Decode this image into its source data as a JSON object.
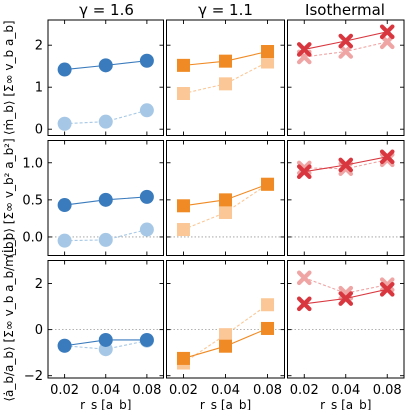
{
  "chart_data": {
    "type": "scatter",
    "column_titles": [
      "γ = 1.6",
      "γ = 1.1",
      "Isothermal"
    ],
    "row_ylabels": [
      "⟨ṁ_b⟩ [Σ∞ v_b a_b]",
      "⟨L̇_b⟩ [Σ∞ v_b² a_b²]",
      "⟨ȧ_b/a_b⟩ [Σ∞ v_b a_b/m_b]"
    ],
    "xlabel": "r_s [a_b]",
    "x": [
      0.02,
      0.04,
      0.08
    ],
    "x_tick_labels": [
      "0.02",
      "0.04",
      "0.08"
    ],
    "xscale": "log",
    "row_ylims": [
      [
        -0.15,
        2.6
      ],
      [
        -0.25,
        1.3
      ],
      [
        -2.1,
        3.0
      ]
    ],
    "row_yticks": [
      [
        0,
        1,
        2
      ],
      [
        0.0,
        0.5,
        1.0
      ],
      [
        -2,
        0,
        2
      ]
    ],
    "row_ytick_labels": [
      [
        "0",
        "1",
        "2"
      ],
      [
        "0.0",
        "0.5",
        "1.0"
      ],
      [
        "−2",
        "0",
        "2"
      ]
    ],
    "zero_line": [
      false,
      true,
      true
    ],
    "columns": [
      {
        "marker": "circle",
        "color": "#3a7bbd",
        "light_color": "#a6c8e6"
      },
      {
        "marker": "square",
        "color": "#f08a24",
        "light_color": "#fbc796"
      },
      {
        "marker": "cross",
        "color": "#d9373f",
        "light_color": "#f0a5a5"
      }
    ],
    "panels": [
      [
        {
          "solid": [
            1.42,
            1.52,
            1.63
          ],
          "dashed": [
            0.13,
            0.18,
            0.45
          ]
        },
        {
          "solid": [
            1.52,
            1.62,
            1.85
          ],
          "dashed": [
            0.85,
            1.08,
            1.6
          ]
        },
        {
          "solid": [
            1.9,
            2.1,
            2.32
          ],
          "dashed": [
            1.72,
            1.85,
            2.08
          ]
        }
      ],
      [
        {
          "solid": [
            0.43,
            0.5,
            0.54
          ],
          "dashed": [
            -0.05,
            -0.04,
            0.1
          ]
        },
        {
          "solid": [
            0.42,
            0.5,
            0.71
          ],
          "dashed": [
            0.1,
            0.33,
            0.71
          ]
        },
        {
          "solid": [
            0.88,
            0.97,
            1.08
          ],
          "dashed": [
            0.93,
            0.92,
            1.04
          ]
        }
      ],
      [
        {
          "solid": [
            -0.7,
            -0.45,
            -0.45
          ],
          "dashed": [
            -0.7,
            -0.85,
            -0.48
          ]
        },
        {
          "solid": [
            -1.25,
            -0.72,
            0.05
          ],
          "dashed": [
            -1.45,
            -0.22,
            1.08
          ]
        },
        {
          "solid": [
            1.12,
            1.35,
            1.75
          ],
          "dashed": [
            2.25,
            1.58,
            1.95
          ]
        }
      ]
    ]
  }
}
